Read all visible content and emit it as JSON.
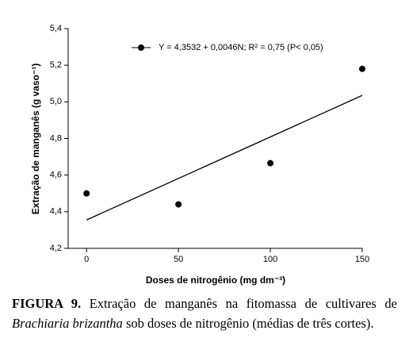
{
  "chart_data": {
    "type": "scatter",
    "y_label": "Extração de manganês (g vaso⁻¹)",
    "x_label": "Doses de nitrogênio (mg dm⁻³)",
    "legend_text": "Y = 4,3532 + 0,0046N; R² = 0,75 (P< 0,05)",
    "x": [
      0,
      50,
      100,
      150
    ],
    "values": [
      4.5,
      4.44,
      4.665,
      5.18
    ],
    "color": "#000000",
    "trend_line": {
      "x": [
        0,
        150
      ],
      "values": [
        4.355,
        5.035
      ]
    },
    "xlim": [
      -10,
      150
    ],
    "xticks": [
      0,
      50,
      100,
      150
    ],
    "ylim": [
      4.2,
      5.4
    ],
    "yticks": [
      {
        "value": 4.2,
        "label": "4,2"
      },
      {
        "value": 4.4,
        "label": "4,4"
      },
      {
        "value": 4.6,
        "label": "4,6"
      },
      {
        "value": 4.8,
        "label": "4,8"
      },
      {
        "value": 5.0,
        "label": "5,0"
      },
      {
        "value": 5.2,
        "label": "5,2"
      },
      {
        "value": 5.4,
        "label": "5,4"
      }
    ]
  },
  "caption": {
    "label": "FIGURA 9.",
    "text": "Extração de manganês na fitomassa de cultivares de",
    "species": "Brachiaria brizantha",
    "text_end": "sob doses de nitrogênio (médias de três cortes)."
  }
}
